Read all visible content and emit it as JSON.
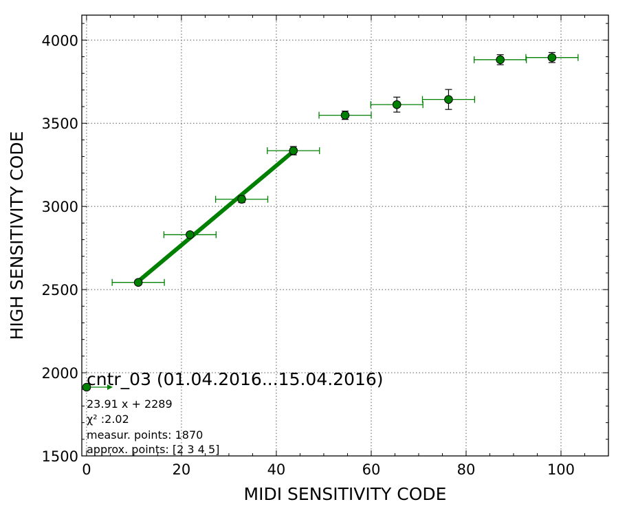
{
  "chart_data": {
    "type": "scatter",
    "xlabel": "MIDI SENSITIVITY CODE",
    "ylabel": "HIGH SENSITIVITY CODE",
    "xlim": [
      -1,
      110
    ],
    "ylim": [
      1500,
      4150
    ],
    "x_ticks": [
      0,
      20,
      40,
      60,
      80,
      100
    ],
    "x_tick_labels": [
      "0",
      "20",
      "40",
      "60",
      "80",
      "100"
    ],
    "y_ticks": [
      1500,
      2000,
      2500,
      3000,
      3500,
      4000
    ],
    "y_tick_labels": [
      "1500",
      "2000",
      "2500",
      "3000",
      "3500",
      "4000"
    ],
    "grid": true,
    "marker_color": "#008000",
    "line_color": "#008000",
    "points": [
      {
        "x": 10.9,
        "y": 2543,
        "xerr": 5.5,
        "yerr": 8
      },
      {
        "x": 21.8,
        "y": 2830,
        "xerr": 5.5,
        "yerr": 15
      },
      {
        "x": 32.7,
        "y": 3043,
        "xerr": 5.5,
        "yerr": 20
      },
      {
        "x": 43.6,
        "y": 3335,
        "xerr": 5.5,
        "yerr": 25
      },
      {
        "x": 54.5,
        "y": 3548,
        "xerr": 5.5,
        "yerr": 25
      },
      {
        "x": 65.4,
        "y": 3612,
        "xerr": 5.5,
        "yerr": 45
      },
      {
        "x": 76.3,
        "y": 3643,
        "xerr": 5.5,
        "yerr": 60
      },
      {
        "x": 87.2,
        "y": 3882,
        "xerr": 5.5,
        "yerr": 30
      },
      {
        "x": 98.1,
        "y": 3895,
        "xerr": 5.5,
        "yerr": 30
      }
    ],
    "fit_line": {
      "slope": 23.91,
      "intercept": 2289,
      "x_start": 10.9,
      "x_end": 43.6
    },
    "legend": {
      "label": "cntr_03 (01.04.2016...15.04.2016)",
      "notes": [
        "23.91 x + 2289",
        "χ² :2.02",
        "measur. points: 1870",
        "approx. points: [2 3 4 5]"
      ],
      "position": "lower-left"
    }
  }
}
